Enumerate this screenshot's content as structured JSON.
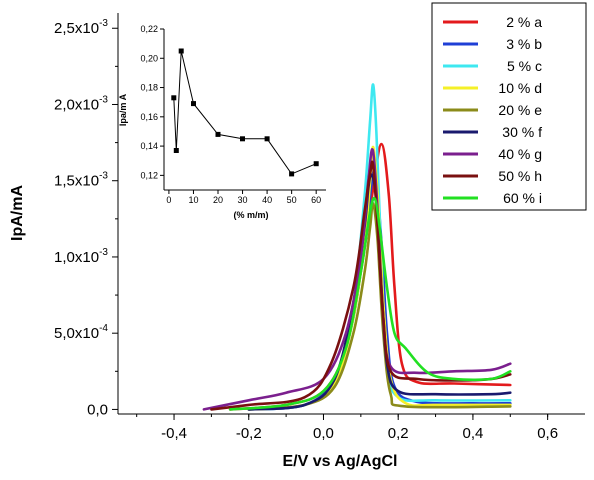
{
  "chart_data": [
    {
      "type": "line",
      "xlabel": "E/V  vs Ag/AgCl",
      "ylabel": "IpA/mA",
      "xlim": [
        -0.55,
        0.7
      ],
      "ylim": [
        -3e-05,
        0.0026
      ],
      "xticks": [
        -0.4,
        -0.2,
        0.0,
        0.2,
        0.4,
        0.6
      ],
      "xtick_labels": [
        "-0,4",
        "-0,2",
        "0,0",
        "0,2",
        "0,4",
        "0,6"
      ],
      "yticks": [
        0,
        0.0005,
        0.001,
        0.0015,
        0.002,
        0.0025
      ],
      "ytick_labels": [
        {
          "base": "0,0",
          "exp": ""
        },
        {
          "base": "5,0x10",
          "exp": "-4"
        },
        {
          "base": "1,0x10",
          "exp": "-3"
        },
        {
          "base": "1,5x10",
          "exp": "-3"
        },
        {
          "base": "2,0x10",
          "exp": "-3"
        },
        {
          "base": "2,5x10",
          "exp": "-3"
        }
      ],
      "legend_position": "top-right",
      "series": [
        {
          "name": "2 % a",
          "color": "#e31a1c",
          "points": [
            [
              -0.25,
              0
            ],
            [
              -0.1,
              3e-05
            ],
            [
              0.0,
              0.00012
            ],
            [
              0.06,
              0.0004
            ],
            [
              0.1,
              0.0009
            ],
            [
              0.13,
              0.0014
            ],
            [
              0.155,
              0.00174
            ],
            [
              0.175,
              0.0014
            ],
            [
              0.19,
              0.0008
            ],
            [
              0.21,
              0.0003
            ],
            [
              0.25,
              0.00018
            ],
            [
              0.35,
              0.00017
            ],
            [
              0.5,
              0.00016
            ]
          ]
        },
        {
          "name": "3 % b",
          "color": "#1f3fd6",
          "points": [
            [
              -0.2,
              0
            ],
            [
              -0.05,
              3e-05
            ],
            [
              0.03,
              0.0002
            ],
            [
              0.08,
              0.0006
            ],
            [
              0.11,
              0.0011
            ],
            [
              0.13,
              0.0015
            ],
            [
              0.14,
              0.00155
            ],
            [
              0.155,
              0.0011
            ],
            [
              0.17,
              0.0005
            ],
            [
              0.19,
              0.00015
            ],
            [
              0.25,
              5e-05
            ],
            [
              0.4,
              4e-05
            ],
            [
              0.5,
              4e-05
            ]
          ]
        },
        {
          "name": "5 % c",
          "color": "#3ee8f0",
          "points": [
            [
              -0.2,
              0
            ],
            [
              -0.05,
              3e-05
            ],
            [
              0.03,
              0.0002
            ],
            [
              0.08,
              0.0007
            ],
            [
              0.11,
              0.0014
            ],
            [
              0.125,
              0.0019
            ],
            [
              0.133,
              0.00213
            ],
            [
              0.142,
              0.0018
            ],
            [
              0.155,
              0.001
            ],
            [
              0.17,
              0.0003
            ],
            [
              0.2,
              8e-05
            ],
            [
              0.3,
              6e-05
            ],
            [
              0.5,
              6e-05
            ]
          ]
        },
        {
          "name": "10 % d",
          "color": "#f5f028",
          "points": [
            [
              -0.2,
              0
            ],
            [
              -0.05,
              3e-05
            ],
            [
              0.03,
              0.00018
            ],
            [
              0.08,
              0.0006
            ],
            [
              0.11,
              0.0011
            ],
            [
              0.125,
              0.0015
            ],
            [
              0.133,
              0.00172
            ],
            [
              0.145,
              0.0014
            ],
            [
              0.16,
              0.0007
            ],
            [
              0.18,
              0.0002
            ],
            [
              0.22,
              4e-05
            ],
            [
              0.3,
              3e-05
            ],
            [
              0.5,
              3e-05
            ]
          ]
        },
        {
          "name": "20 % e",
          "color": "#8b8b1a",
          "points": [
            [
              -0.2,
              0
            ],
            [
              -0.05,
              3e-05
            ],
            [
              0.03,
              0.00015
            ],
            [
              0.08,
              0.0005
            ],
            [
              0.11,
              0.0009
            ],
            [
              0.125,
              0.0012
            ],
            [
              0.133,
              0.00135
            ],
            [
              0.145,
              0.0011
            ],
            [
              0.16,
              0.0005
            ],
            [
              0.18,
              0.0001
            ],
            [
              0.22,
              2e-05
            ],
            [
              0.5,
              2e-05
            ]
          ]
        },
        {
          "name": "30 % f",
          "color": "#1a1a6e",
          "points": [
            [
              -0.2,
              0
            ],
            [
              -0.05,
              3e-05
            ],
            [
              0.03,
              0.0002
            ],
            [
              0.08,
              0.0007
            ],
            [
              0.11,
              0.0012
            ],
            [
              0.12,
              0.00145
            ],
            [
              0.128,
              0.00154
            ],
            [
              0.14,
              0.0014
            ],
            [
              0.155,
              0.0008
            ],
            [
              0.17,
              0.0003
            ],
            [
              0.2,
              0.00012
            ],
            [
              0.3,
              0.0001
            ],
            [
              0.45,
              0.0001
            ],
            [
              0.5,
              0.00011
            ]
          ]
        },
        {
          "name": "40 % g",
          "color": "#7b1f8e",
          "points": [
            [
              -0.32,
              0
            ],
            [
              -0.2,
              6e-05
            ],
            [
              -0.1,
              0.00011
            ],
            [
              0.0,
              0.0002
            ],
            [
              0.06,
              0.0005
            ],
            [
              0.1,
              0.001
            ],
            [
              0.12,
              0.0015
            ],
            [
              0.132,
              0.0017
            ],
            [
              0.145,
              0.0013
            ],
            [
              0.16,
              0.0006
            ],
            [
              0.18,
              0.00028
            ],
            [
              0.25,
              0.00024
            ],
            [
              0.35,
              0.00025
            ],
            [
              0.45,
              0.00026
            ],
            [
              0.5,
              0.0003
            ]
          ]
        },
        {
          "name": "50 % h",
          "color": "#7a1010",
          "points": [
            [
              -0.3,
              0
            ],
            [
              -0.2,
              3e-05
            ],
            [
              -0.05,
              8e-05
            ],
            [
              0.02,
              0.0003
            ],
            [
              0.08,
              0.0008
            ],
            [
              0.11,
              0.0013
            ],
            [
              0.125,
              0.00155
            ],
            [
              0.133,
              0.0016
            ],
            [
              0.145,
              0.0012
            ],
            [
              0.16,
              0.0006
            ],
            [
              0.18,
              0.00025
            ],
            [
              0.25,
              0.0002
            ],
            [
              0.35,
              0.00019
            ],
            [
              0.45,
              0.0002
            ],
            [
              0.5,
              0.00023
            ]
          ]
        },
        {
          "name": "60 % i",
          "color": "#22e022",
          "points": [
            [
              -0.25,
              0
            ],
            [
              -0.1,
              3e-05
            ],
            [
              0.0,
              0.00012
            ],
            [
              0.06,
              0.0004
            ],
            [
              0.1,
              0.0009
            ],
            [
              0.125,
              0.0013
            ],
            [
              0.138,
              0.00138
            ],
            [
              0.15,
              0.0012
            ],
            [
              0.17,
              0.0008
            ],
            [
              0.19,
              0.0005
            ],
            [
              0.22,
              0.0004
            ],
            [
              0.28,
              0.00024
            ],
            [
              0.35,
              0.0002
            ],
            [
              0.45,
              0.0002
            ],
            [
              0.5,
              0.00025
            ]
          ]
        }
      ]
    },
    {
      "type": "line",
      "inset": true,
      "xlabel": "(% m/m)",
      "ylabel": "Ipa/m A",
      "xlim": [
        -2,
        64
      ],
      "ylim": [
        0.11,
        0.22
      ],
      "xticks": [
        0,
        10,
        20,
        30,
        40,
        50,
        60
      ],
      "xtick_labels": [
        "0",
        "10",
        "20",
        "30",
        "40",
        "50",
        "60"
      ],
      "yticks": [
        0.12,
        0.14,
        0.16,
        0.18,
        0.2,
        0.22
      ],
      "ytick_labels": [
        "0,12",
        "0,14",
        "0,16",
        "0,18",
        "0,20",
        "0,22"
      ],
      "series": [
        {
          "color": "#000000",
          "x": [
            2,
            3,
            5,
            10,
            20,
            30,
            40,
            50,
            60
          ],
          "y": [
            0.173,
            0.137,
            0.205,
            0.169,
            0.148,
            0.145,
            0.145,
            0.121,
            0.128
          ]
        }
      ]
    }
  ]
}
